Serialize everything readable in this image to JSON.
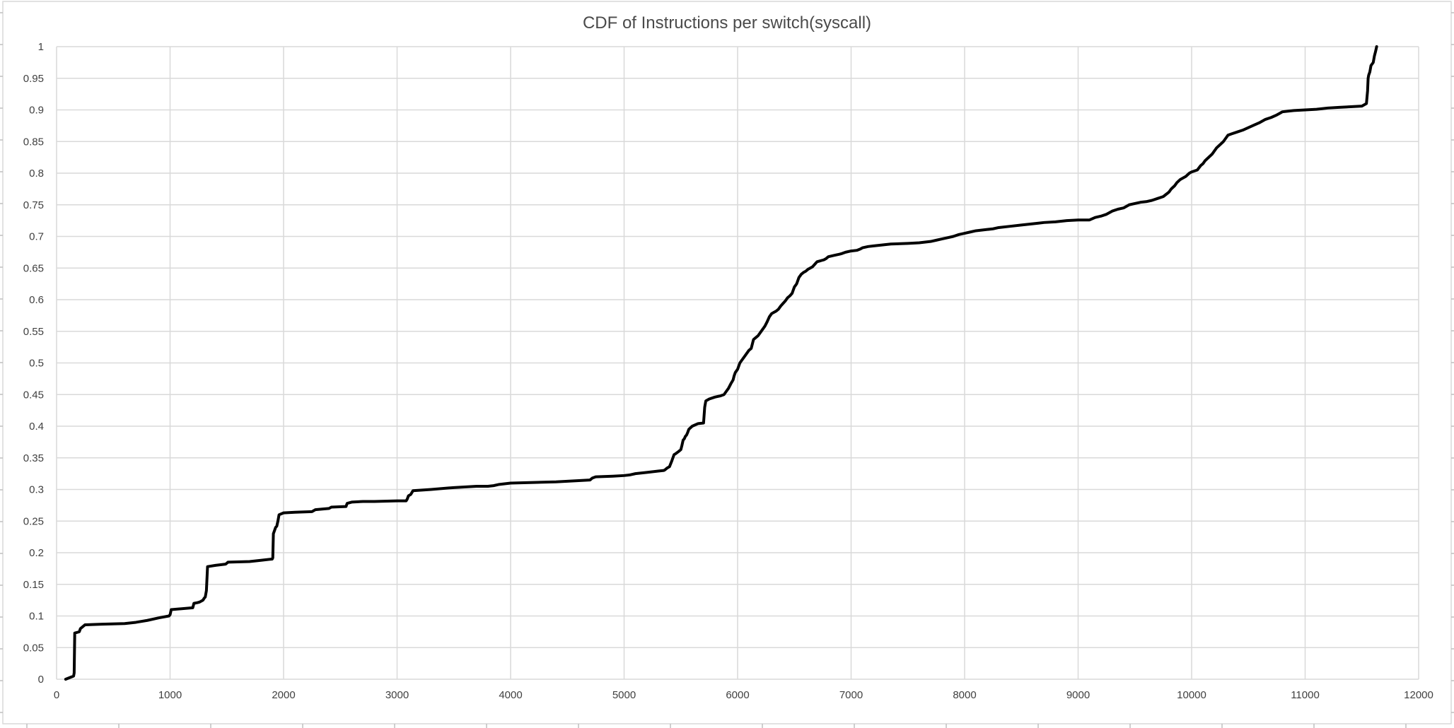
{
  "chart_data": {
    "type": "line",
    "title": "CDF of Instructions per switch(syscall)",
    "xlabel": "",
    "ylabel": "",
    "xlim": [
      0,
      12000
    ],
    "ylim": [
      0,
      1
    ],
    "x_ticks": [
      0,
      1000,
      2000,
      3000,
      4000,
      5000,
      6000,
      7000,
      8000,
      9000,
      10000,
      11000,
      12000
    ],
    "y_ticks": [
      0,
      0.05,
      0.1,
      0.15,
      0.2,
      0.25,
      0.3,
      0.35,
      0.4,
      0.45,
      0.5,
      0.55,
      0.6,
      0.65,
      0.7,
      0.75,
      0.8,
      0.85,
      0.9,
      0.95,
      1
    ],
    "grid": true,
    "legend": "none",
    "line_color": "#000000",
    "series": [
      {
        "x": [
          80,
          150,
          155,
          160,
          200,
          210,
          250,
          400,
          600,
          700,
          800,
          900,
          990,
          1000,
          1010,
          1200,
          1210,
          1240,
          1260,
          1290,
          1300,
          1310,
          1320,
          1330,
          1400,
          1490,
          1510,
          1700,
          1800,
          1900,
          1905,
          1910,
          1920,
          1930,
          1940,
          1950,
          1960,
          2000,
          2100,
          2250,
          2280,
          2400,
          2420,
          2550,
          2560,
          2600,
          2700,
          2800,
          3000,
          3080,
          3090,
          3100,
          3120,
          3140,
          3300,
          3500,
          3700,
          3800,
          3850,
          3900,
          4000,
          4200,
          4400,
          4600,
          4700,
          4720,
          4750,
          4900,
          5000,
          5050,
          5100,
          5200,
          5300,
          5350,
          5360,
          5380,
          5400,
          5420,
          5430,
          5440,
          5450,
          5480,
          5500,
          5510,
          5520,
          5530,
          5540,
          5550,
          5560,
          5570,
          5600,
          5650,
          5700,
          5710,
          5720,
          5750,
          5800,
          5850,
          5880,
          5900,
          5920,
          5940,
          5960,
          5970,
          5980,
          6000,
          6010,
          6020,
          6040,
          6060,
          6080,
          6100,
          6120,
          6130,
          6140,
          6160,
          6180,
          6200,
          6220,
          6240,
          6260,
          6280,
          6300,
          6320,
          6340,
          6360,
          6380,
          6400,
          6420,
          6440,
          6460,
          6480,
          6500,
          6520,
          6540,
          6560,
          6580,
          6600,
          6620,
          6640,
          6660,
          6680,
          6700,
          6720,
          6740,
          6760,
          6780,
          6800,
          6850,
          6900,
          6920,
          6950,
          7000,
          7050,
          7080,
          7100,
          7150,
          7200,
          7250,
          7300,
          7350,
          7500,
          7600,
          7700,
          7750,
          7800,
          7850,
          7900,
          7950,
          8000,
          8050,
          8100,
          8200,
          8250,
          8300,
          8400,
          8500,
          8600,
          8650,
          8700,
          8800,
          8850,
          8900,
          9000,
          9100,
          9150,
          9200,
          9250,
          9300,
          9350,
          9400,
          9450,
          9500,
          9550,
          9600,
          9650,
          9700,
          9750,
          9800,
          9820,
          9850,
          9870,
          9900,
          9950,
          9980,
          10000,
          10050,
          10080,
          10100,
          10120,
          10150,
          10180,
          10200,
          10220,
          10250,
          10280,
          10300,
          10320,
          10350,
          10400,
          10450,
          10500,
          10550,
          10600,
          10650,
          10700,
          10750,
          10780,
          10800,
          10850,
          10900,
          11000,
          11100,
          11150,
          11200,
          11300,
          11400,
          11500,
          11540,
          11550,
          11555,
          11560,
          11570,
          11580,
          11600,
          11610,
          11620,
          11630
        ],
        "y": [
          0,
          0.005,
          0.01,
          0.073,
          0.075,
          0.08,
          0.086,
          0.087,
          0.088,
          0.09,
          0.093,
          0.097,
          0.1,
          0.102,
          0.11,
          0.113,
          0.12,
          0.121,
          0.122,
          0.125,
          0.128,
          0.13,
          0.14,
          0.178,
          0.18,
          0.182,
          0.185,
          0.186,
          0.188,
          0.19,
          0.192,
          0.23,
          0.235,
          0.24,
          0.242,
          0.25,
          0.26,
          0.263,
          0.264,
          0.265,
          0.268,
          0.27,
          0.272,
          0.273,
          0.278,
          0.28,
          0.281,
          0.281,
          0.282,
          0.282,
          0.285,
          0.29,
          0.292,
          0.298,
          0.3,
          0.303,
          0.305,
          0.305,
          0.306,
          0.308,
          0.31,
          0.311,
          0.312,
          0.314,
          0.315,
          0.318,
          0.32,
          0.321,
          0.322,
          0.323,
          0.325,
          0.327,
          0.329,
          0.33,
          0.331,
          0.334,
          0.336,
          0.345,
          0.35,
          0.355,
          0.356,
          0.36,
          0.363,
          0.37,
          0.378,
          0.38,
          0.384,
          0.386,
          0.39,
          0.395,
          0.4,
          0.404,
          0.405,
          0.43,
          0.44,
          0.443,
          0.446,
          0.448,
          0.45,
          0.455,
          0.46,
          0.467,
          0.473,
          0.48,
          0.485,
          0.49,
          0.495,
          0.5,
          0.505,
          0.51,
          0.515,
          0.52,
          0.523,
          0.53,
          0.537,
          0.54,
          0.543,
          0.548,
          0.553,
          0.558,
          0.565,
          0.573,
          0.578,
          0.58,
          0.582,
          0.585,
          0.59,
          0.594,
          0.598,
          0.603,
          0.606,
          0.61,
          0.62,
          0.625,
          0.635,
          0.64,
          0.643,
          0.645,
          0.648,
          0.65,
          0.652,
          0.656,
          0.66,
          0.661,
          0.662,
          0.663,
          0.665,
          0.668,
          0.67,
          0.672,
          0.673,
          0.675,
          0.677,
          0.678,
          0.68,
          0.682,
          0.684,
          0.685,
          0.686,
          0.687,
          0.688,
          0.689,
          0.69,
          0.692,
          0.694,
          0.696,
          0.698,
          0.7,
          0.703,
          0.705,
          0.707,
          0.709,
          0.711,
          0.712,
          0.714,
          0.716,
          0.718,
          0.72,
          0.721,
          0.722,
          0.723,
          0.724,
          0.725,
          0.726,
          0.726,
          0.73,
          0.732,
          0.735,
          0.74,
          0.743,
          0.745,
          0.75,
          0.752,
          0.754,
          0.755,
          0.757,
          0.76,
          0.763,
          0.77,
          0.775,
          0.78,
          0.785,
          0.79,
          0.795,
          0.8,
          0.802,
          0.805,
          0.812,
          0.815,
          0.82,
          0.825,
          0.83,
          0.835,
          0.84,
          0.845,
          0.85,
          0.855,
          0.86,
          0.862,
          0.865,
          0.868,
          0.872,
          0.876,
          0.88,
          0.885,
          0.888,
          0.892,
          0.895,
          0.897,
          0.898,
          0.899,
          0.9,
          0.901,
          0.902,
          0.903,
          0.904,
          0.905,
          0.906,
          0.91,
          0.93,
          0.95,
          0.955,
          0.96,
          0.97,
          0.975,
          0.985,
          0.992,
          1.0
        ]
      }
    ]
  }
}
